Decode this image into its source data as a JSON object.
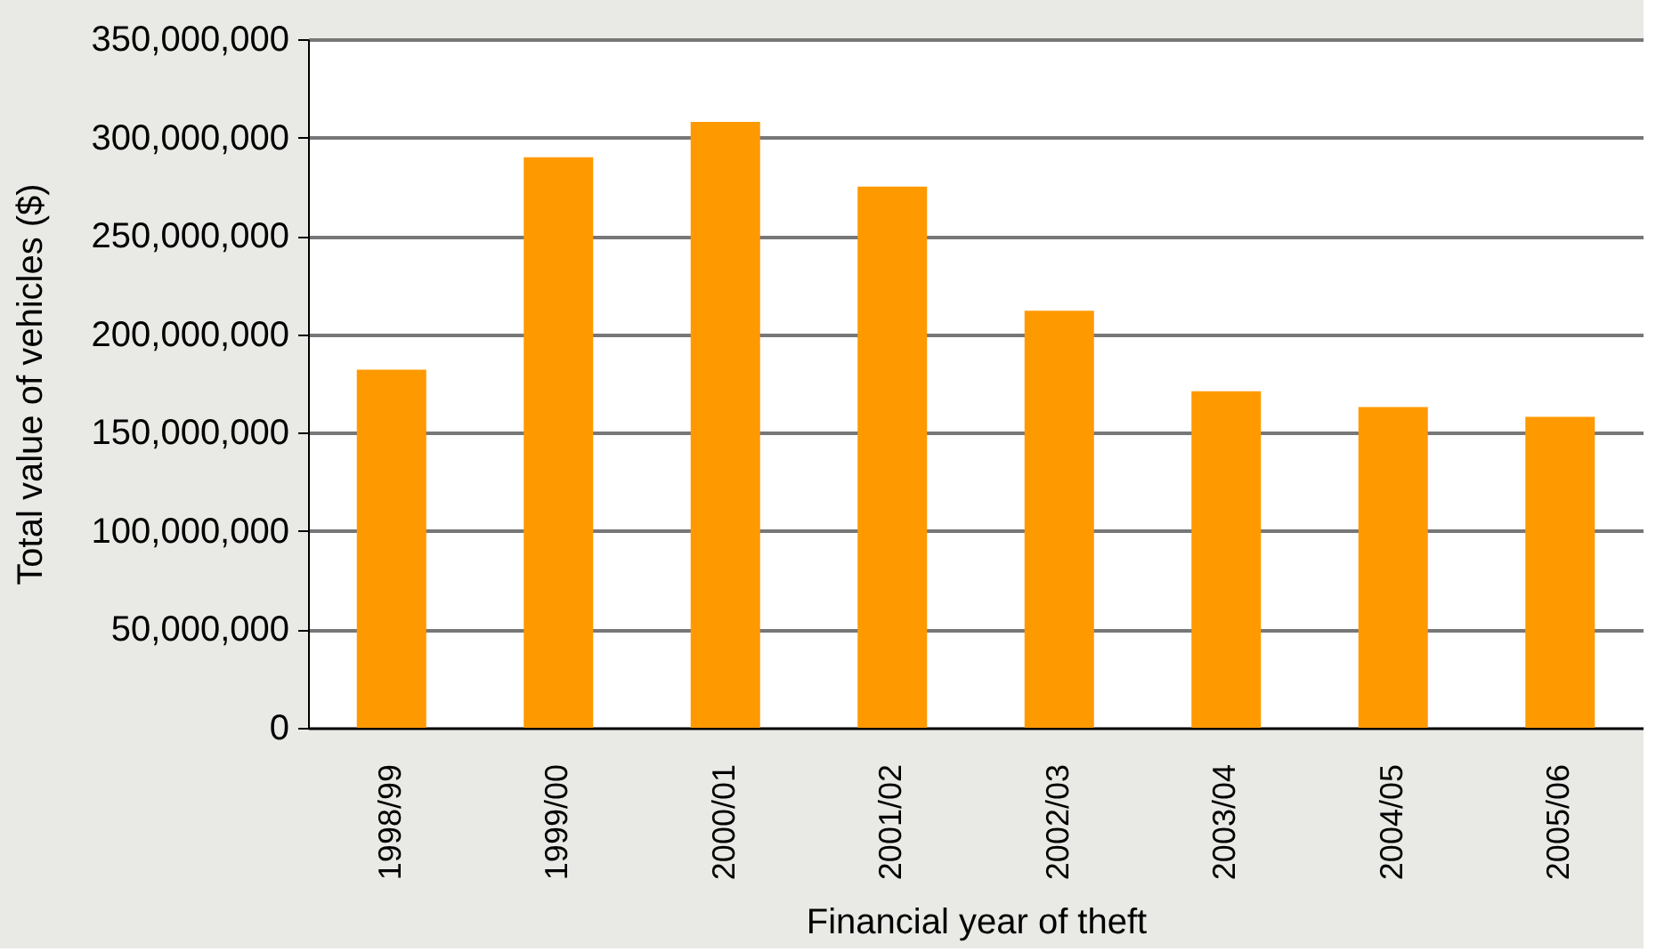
{
  "chart_data": {
    "type": "bar",
    "xlabel": "Financial year of theft",
    "ylabel": "Total value of vehicles ($)",
    "categories": [
      "1998/99",
      "1999/00",
      "2000/01",
      "2001/02",
      "2002/03",
      "2003/04",
      "2004/05",
      "2005/06"
    ],
    "values": [
      182000000,
      290000000,
      308000000,
      275000000,
      212000000,
      171000000,
      163000000,
      158000000
    ],
    "color": "#ff9900",
    "ylim": [
      0,
      350000000
    ],
    "yticks": [
      0,
      {
        "value": 50000000,
        "label": "50,000,000"
      },
      {
        "value": 100000000,
        "label": "100,000,000"
      },
      {
        "value": 150000000,
        "label": "150,000,000"
      },
      {
        "value": 200000000,
        "label": "200,000,000"
      },
      {
        "value": 250000000,
        "label": "250,000,000"
      },
      {
        "value": 300000000,
        "label": "300,000,000"
      },
      {
        "value": 350000000,
        "label": "350,000,000"
      }
    ],
    "grid": "y"
  }
}
